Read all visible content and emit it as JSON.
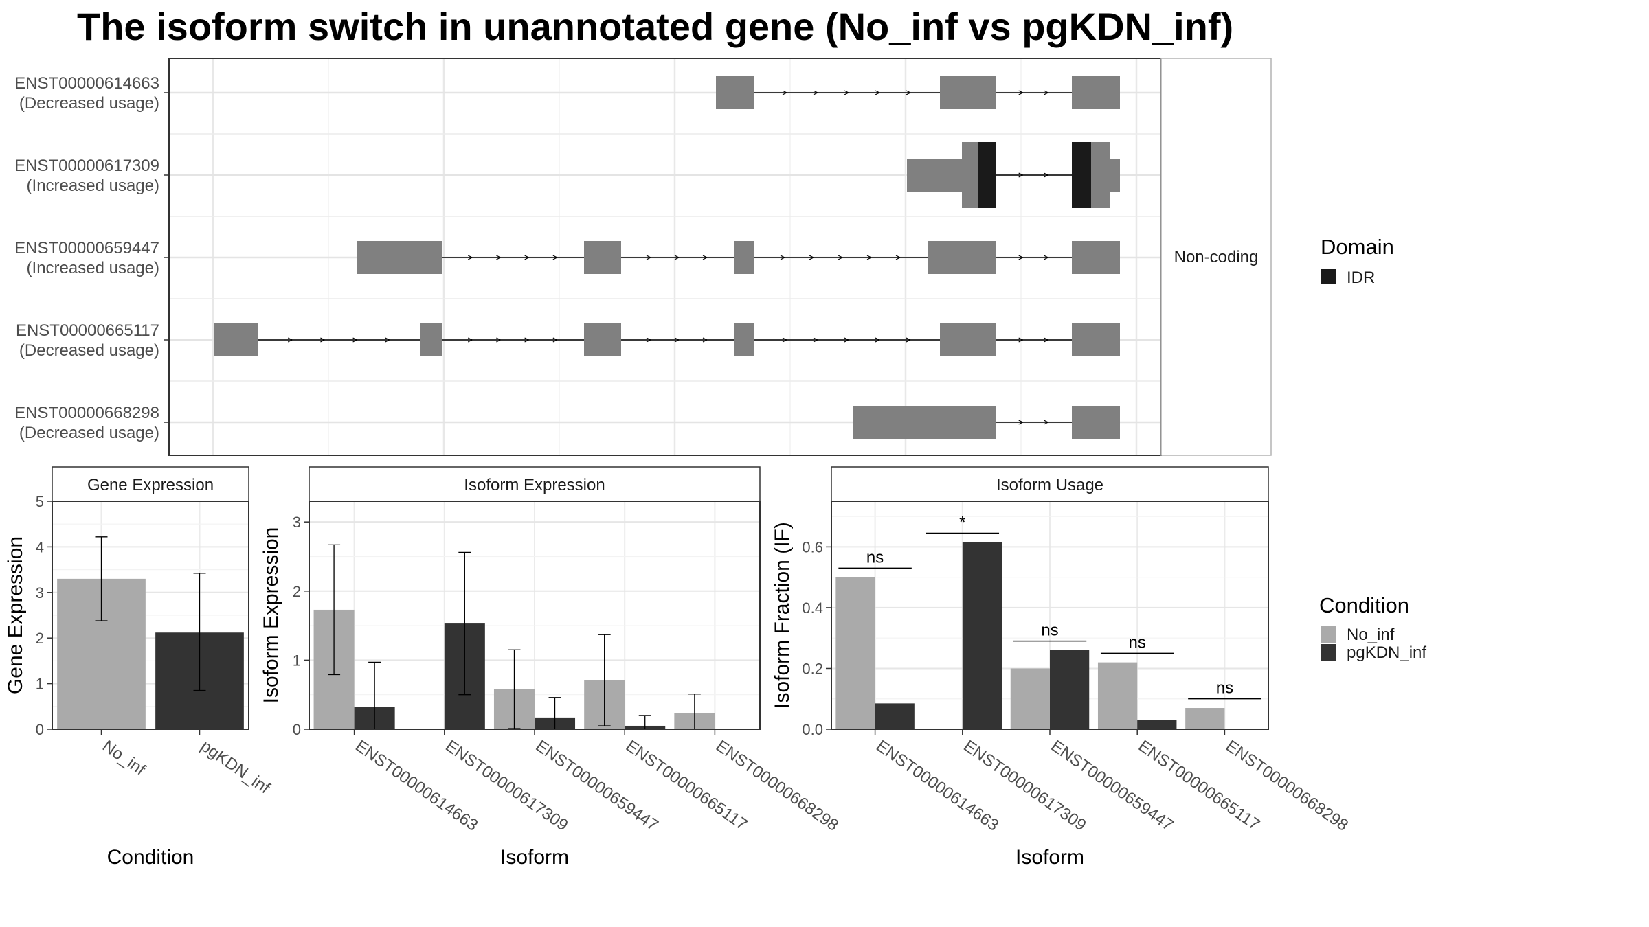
{
  "figure": {
    "title": "The isoform switch in unannotated gene (No_inf vs pgKDN_inf)"
  },
  "structure": {
    "transcripts": [
      {
        "id": "ENST00000614663",
        "usage": "(Decreased usage)"
      },
      {
        "id": "ENST00000617309",
        "usage": "(Increased usage)"
      },
      {
        "id": "ENST00000659447",
        "usage": "(Increased usage)"
      },
      {
        "id": "ENST00000665117",
        "usage": "(Decreased usage)"
      },
      {
        "id": "ENST00000668298",
        "usage": "(Decreased usage)"
      }
    ],
    "strip_label": "Non-coding",
    "colors": {
      "exon": "#808080",
      "domain": "#1a1a1a",
      "intron": "#000000"
    }
  },
  "legends": {
    "domain": {
      "title": "Domain",
      "items": [
        {
          "label": "IDR",
          "color": "#1a1a1a"
        }
      ]
    },
    "condition": {
      "title": "Condition",
      "items": [
        {
          "label": "No_inf",
          "color": "#aaaaaa"
        },
        {
          "label": "pgKDN_inf",
          "color": "#333333"
        }
      ]
    }
  },
  "chart_data": [
    {
      "type": "bar",
      "panel": "gene",
      "title": "Gene Expression",
      "xlabel": "Condition",
      "ylabel": "Gene Expression",
      "ylim": [
        0,
        5
      ],
      "yticks": [
        "0",
        "1",
        "2",
        "3",
        "4",
        "5"
      ],
      "categories": [
        "No_inf",
        "pgKDN_inf"
      ],
      "values": [
        3.3,
        2.12
      ],
      "error_low": [
        2.38,
        0.85
      ],
      "error_high": [
        4.22,
        3.42
      ],
      "colors": [
        "#aaaaaa",
        "#333333"
      ]
    },
    {
      "type": "bar",
      "panel": "isoexp",
      "title": "Isoform Expression",
      "xlabel": "Isoform",
      "ylabel": "Isoform Expression",
      "ylim": [
        0,
        3.3
      ],
      "yticks": [
        "0",
        "1",
        "2",
        "3"
      ],
      "categories": [
        "ENST00000614663",
        "ENST00000617309",
        "ENST00000659447",
        "ENST00000665117",
        "ENST00000668298"
      ],
      "series": [
        {
          "name": "No_inf",
          "color": "#aaaaaa",
          "values": [
            1.73,
            0.0,
            0.58,
            0.71,
            0.23
          ],
          "error_low": [
            0.79,
            0.0,
            0.01,
            0.05,
            0.0
          ],
          "error_high": [
            2.67,
            0.0,
            1.15,
            1.37,
            0.51
          ]
        },
        {
          "name": "pgKDN_inf",
          "color": "#333333",
          "values": [
            0.32,
            1.53,
            0.17,
            0.05,
            0.0
          ],
          "error_low": [
            0.0,
            0.5,
            0.0,
            0.0,
            0.0
          ],
          "error_high": [
            0.97,
            2.56,
            0.46,
            0.2,
            0.0
          ]
        }
      ]
    },
    {
      "type": "bar",
      "panel": "isousage",
      "title": "Isoform Usage",
      "xlabel": "Isoform",
      "ylabel": "Isoform Fraction (IF)",
      "ylim": [
        0,
        0.75
      ],
      "yticks": [
        "0.0",
        "0.2",
        "0.4",
        "0.6"
      ],
      "categories": [
        "ENST00000614663",
        "ENST00000617309",
        "ENST00000659447",
        "ENST00000665117",
        "ENST00000668298"
      ],
      "series": [
        {
          "name": "No_inf",
          "color": "#aaaaaa",
          "values": [
            0.5,
            0.0,
            0.2,
            0.22,
            0.07
          ]
        },
        {
          "name": "pgKDN_inf",
          "color": "#333333",
          "values": [
            0.085,
            0.615,
            0.26,
            0.03,
            0.0
          ]
        }
      ],
      "significance": [
        {
          "label": "ns",
          "y": 0.53
        },
        {
          "label": "*",
          "y": 0.645
        },
        {
          "label": "ns",
          "y": 0.29
        },
        {
          "label": "ns",
          "y": 0.25
        },
        {
          "label": "ns",
          "y": 0.1
        }
      ]
    }
  ]
}
